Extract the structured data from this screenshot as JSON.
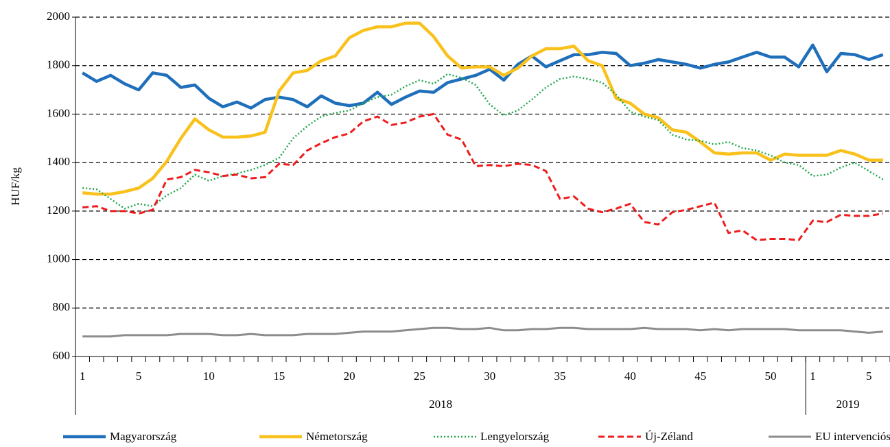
{
  "chart_data": {
    "type": "line",
    "y_label": "HUF/kg",
    "categories": [
      "1",
      null,
      null,
      null,
      "5",
      null,
      null,
      null,
      null,
      "10",
      null,
      null,
      null,
      null,
      "15",
      null,
      null,
      null,
      null,
      "20",
      null,
      null,
      null,
      null,
      "25",
      null,
      null,
      null,
      null,
      "30",
      null,
      null,
      null,
      null,
      "35",
      null,
      null,
      null,
      null,
      "40",
      null,
      null,
      null,
      null,
      "45",
      null,
      null,
      null,
      null,
      "50",
      null,
      null,
      "1",
      null,
      null,
      null,
      "5",
      null
    ],
    "groups": [
      {
        "label": "2018",
        "categories": 52
      },
      {
        "label": "2019",
        "categories": 6
      }
    ],
    "ylim": [
      600,
      2000
    ],
    "yticks": [
      600,
      800,
      1000,
      1200,
      1400,
      1600,
      1800,
      2000
    ],
    "grid": true,
    "legend": "bottom",
    "series": [
      {
        "name": "Magyarország",
        "color": "#1f6fba",
        "style": "solid",
        "values": [
          1770,
          1735,
          1760,
          1725,
          1700,
          1770,
          1760,
          1710,
          1720,
          1665,
          1630,
          1650,
          1625,
          1660,
          1670,
          1660,
          1630,
          1675,
          1645,
          1635,
          1645,
          1690,
          1640,
          1670,
          1695,
          1690,
          1730,
          1745,
          1760,
          1785,
          1740,
          1805,
          1840,
          1795,
          1820,
          1845,
          1845,
          1855,
          1850,
          1800,
          1810,
          1825,
          1815,
          1805,
          1790,
          1805,
          1815,
          1835,
          1855,
          1835,
          1835,
          1795,
          1885,
          1775,
          1850,
          1845,
          1825,
          1845
        ]
      },
      {
        "name": "Németország",
        "color": "#f9c11c",
        "style": "solid",
        "values": [
          1275,
          1270,
          1270,
          1280,
          1295,
          1335,
          1405,
          1500,
          1580,
          1535,
          1505,
          1505,
          1510,
          1525,
          1695,
          1770,
          1780,
          1820,
          1840,
          1915,
          1945,
          1960,
          1960,
          1975,
          1975,
          1920,
          1840,
          1790,
          1795,
          1795,
          1760,
          1790,
          1840,
          1870,
          1870,
          1880,
          1820,
          1800,
          1665,
          1645,
          1600,
          1585,
          1535,
          1525,
          1485,
          1440,
          1435,
          1440,
          1440,
          1410,
          1435,
          1430,
          1430,
          1430,
          1450,
          1435,
          1410,
          1410
        ]
      },
      {
        "name": "Lengyelország",
        "color": "#1fa64a",
        "style": "dotted",
        "values": [
          1295,
          1290,
          1250,
          1210,
          1230,
          1220,
          1265,
          1295,
          1350,
          1325,
          1345,
          1355,
          1370,
          1390,
          1420,
          1500,
          1550,
          1590,
          1605,
          1615,
          1645,
          1670,
          1680,
          1715,
          1740,
          1725,
          1765,
          1750,
          1720,
          1640,
          1595,
          1615,
          1660,
          1710,
          1745,
          1755,
          1745,
          1730,
          1680,
          1610,
          1590,
          1575,
          1515,
          1495,
          1490,
          1475,
          1485,
          1460,
          1450,
          1430,
          1400,
          1390,
          1345,
          1350,
          1380,
          1400,
          1365,
          1330
        ]
      },
      {
        "name": "Új-Zéland",
        "color": "#ee1c1c",
        "style": "dashed",
        "values": [
          1215,
          1220,
          1200,
          1200,
          1190,
          1205,
          1330,
          1340,
          1370,
          1360,
          1345,
          1350,
          1335,
          1340,
          1395,
          1390,
          1450,
          1480,
          1505,
          1520,
          1570,
          1590,
          1555,
          1565,
          1590,
          1600,
          1515,
          1495,
          1385,
          1390,
          1385,
          1395,
          1390,
          1365,
          1250,
          1260,
          1210,
          1195,
          1210,
          1230,
          1155,
          1145,
          1195,
          1205,
          1220,
          1235,
          1110,
          1120,
          1080,
          1085,
          1085,
          1080,
          1160,
          1155,
          1185,
          1180,
          1180,
          1190
        ]
      },
      {
        "name": "EU intervenciós",
        "color": "#8c8c8c",
        "style": "solid",
        "values": [
          683,
          683,
          683,
          688,
          688,
          688,
          688,
          693,
          693,
          693,
          688,
          688,
          693,
          688,
          688,
          688,
          693,
          693,
          693,
          698,
          703,
          703,
          703,
          708,
          713,
          718,
          718,
          713,
          713,
          718,
          708,
          708,
          713,
          713,
          718,
          718,
          713,
          713,
          713,
          713,
          718,
          713,
          713,
          713,
          708,
          713,
          708,
          713,
          713,
          713,
          713,
          708,
          708,
          708,
          708,
          703,
          698,
          703
        ]
      }
    ]
  }
}
